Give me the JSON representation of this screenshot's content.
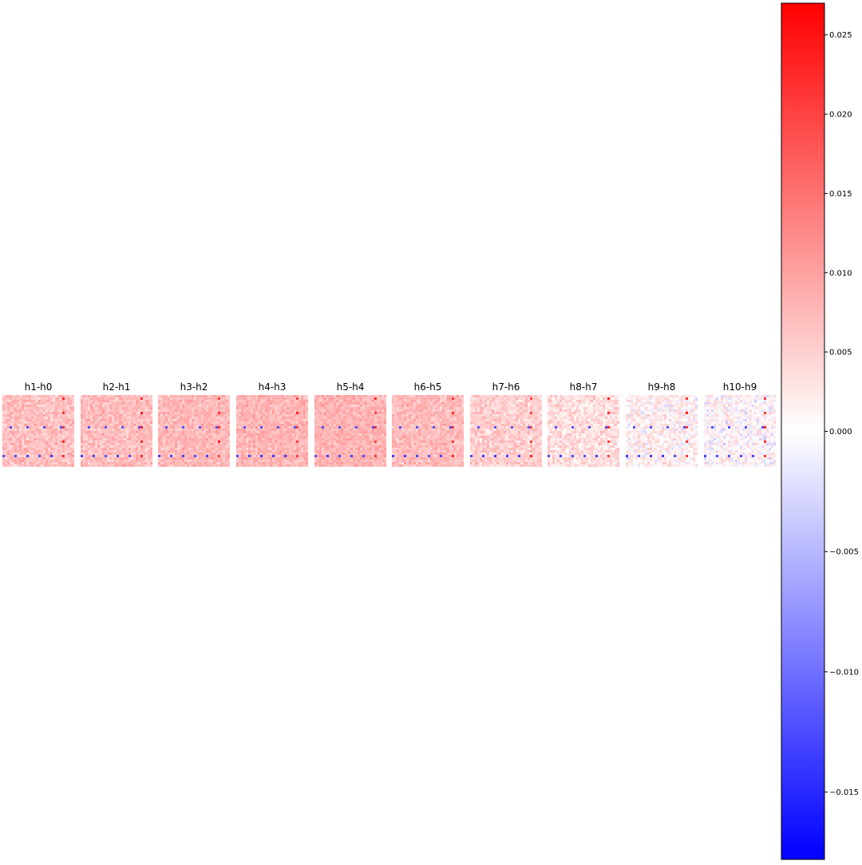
{
  "chart_data": {
    "type": "heatmap",
    "colormap": "bwr",
    "grid": false,
    "panels": [
      {
        "title": "h1-h0",
        "mean": 0.0068,
        "spread": 0.0042
      },
      {
        "title": "h2-h1",
        "mean": 0.007,
        "spread": 0.004
      },
      {
        "title": "h3-h2",
        "mean": 0.0075,
        "spread": 0.0038
      },
      {
        "title": "h4-h3",
        "mean": 0.0078,
        "spread": 0.0037
      },
      {
        "title": "h5-h4",
        "mean": 0.008,
        "spread": 0.0036
      },
      {
        "title": "h6-h5",
        "mean": 0.0072,
        "spread": 0.0038
      },
      {
        "title": "h7-h6",
        "mean": 0.0052,
        "spread": 0.0042
      },
      {
        "title": "h8-h7",
        "mean": 0.0035,
        "spread": 0.0045
      },
      {
        "title": "h9-h8",
        "mean": 0.0015,
        "spread": 0.0048
      },
      {
        "title": "h10-h9",
        "mean": 0.0008,
        "spread": 0.005
      }
    ],
    "matrix_size": 30,
    "colorbar": {
      "vmin": -0.0178,
      "vmax": 0.027,
      "ticks": [
        -0.015,
        -0.01,
        -0.005,
        0.0,
        0.005,
        0.01,
        0.015,
        0.02,
        0.025
      ],
      "tick_labels": [
        "−0.015",
        "−0.010",
        "−0.005",
        "0.000",
        "0.005",
        "0.010",
        "0.015",
        "0.020",
        "0.025"
      ],
      "placement": "right"
    }
  }
}
